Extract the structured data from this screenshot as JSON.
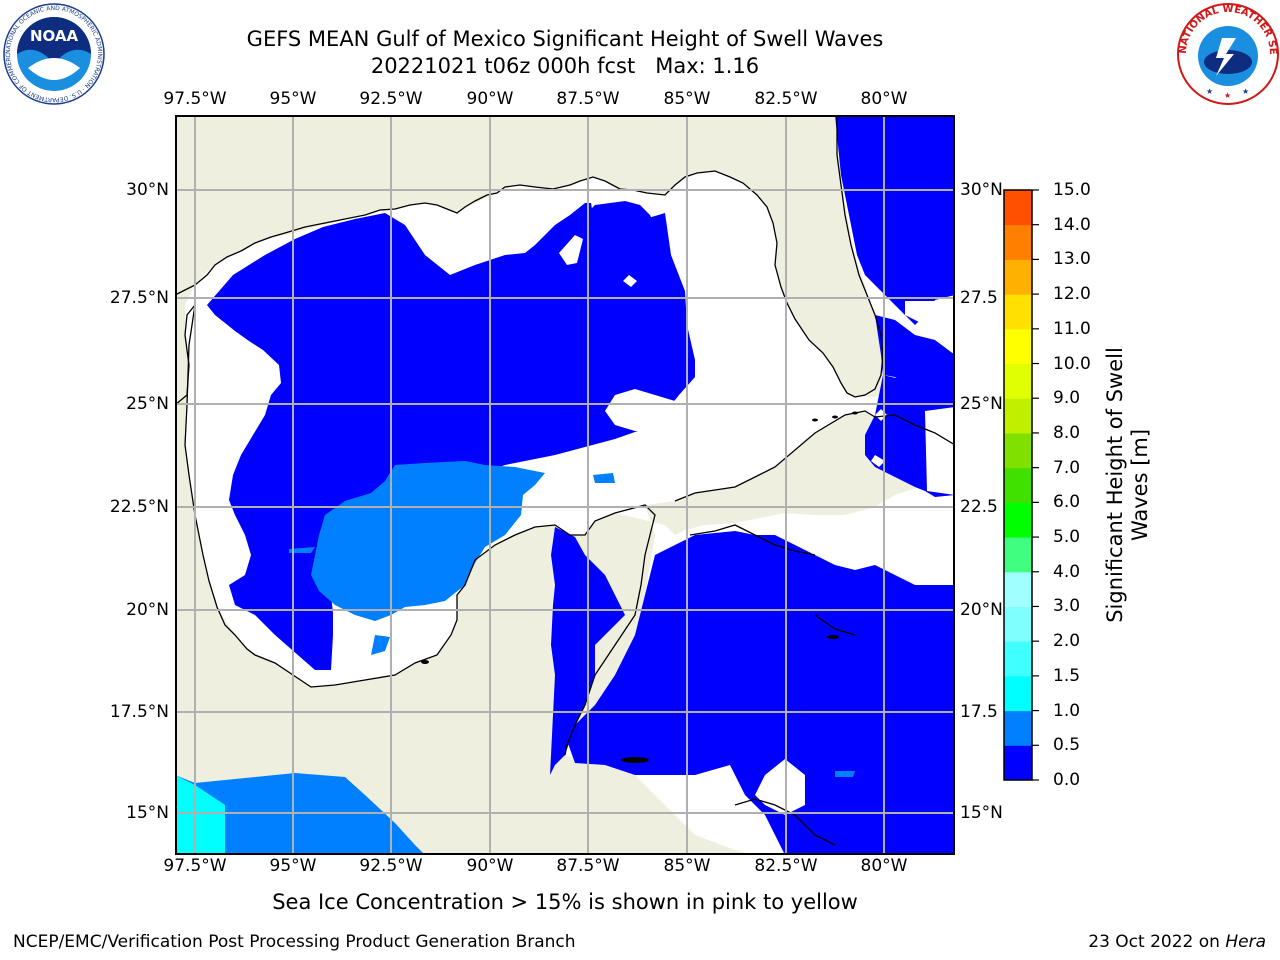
{
  "title_line1": "GEFS MEAN Gulf of Mexico Significant Height of Swell Waves",
  "title_date": "20221021 t06z 000h fcst",
  "title_max": "Max: 1.16",
  "lon_labels": [
    "97.5°W",
    "95°W",
    "92.5°W",
    "90°W",
    "87.5°W",
    "85°W",
    "82.5°W",
    "80°W"
  ],
  "lat_labels_left": [
    "30°N",
    "27.5°N",
    "25°N",
    "22.5°N",
    "20°N",
    "17.5°N",
    "15°N"
  ],
  "lat_labels_right": [
    "30°N",
    "27.5",
    "25°N",
    "22.5",
    "20°N",
    "17.5",
    "15°N"
  ],
  "colorbar": {
    "label_line1": "Significant Height of Swell",
    "label_line2": "Waves [m]",
    "ticks": [
      "0.0",
      "0.5",
      "1.0",
      "1.5",
      "2.0",
      "3.0",
      "4.0",
      "5.0",
      "6.0",
      "7.0",
      "8.0",
      "9.0",
      "10.0",
      "11.0",
      "12.0",
      "13.0",
      "14.0",
      "15.0"
    ],
    "colors": [
      "#0000ff",
      "#0080ff",
      "#00ffff",
      "#40ffff",
      "#80ffff",
      "#a0ffff",
      "#40ff80",
      "#00ff00",
      "#40e000",
      "#80e000",
      "#c0f000",
      "#e0ff00",
      "#ffff00",
      "#ffe000",
      "#ffb000",
      "#ff8000",
      "#ff5000",
      "#ff2000",
      "#ff0000"
    ]
  },
  "footer_note": "Sea Ice Concentration > 15% is shown in pink to yellow",
  "credit_left": "NCEP/EMC/Verification Post Processing Product Generation Branch",
  "credit_date": "23 Oct 2022 on ",
  "credit_machine": "Hera",
  "logo_left_text": "NOAA",
  "logo_left_ring": "NATIONAL OCEANIC AND ATMOSPHERIC ADMINISTRATION · U.S. DEPARTMENT OF COMMERCE",
  "logo_right_ring": "NATIONAL WEATHER SERVICE",
  "colors": {
    "land": "#efefdf",
    "swell_0_0_5": "#0000ff",
    "swell_0_5_1_0": "#0080ff",
    "swell_1_0_1_5": "#00ffff",
    "no_data": "#ffffff",
    "grid": "#b0b0b0"
  }
}
